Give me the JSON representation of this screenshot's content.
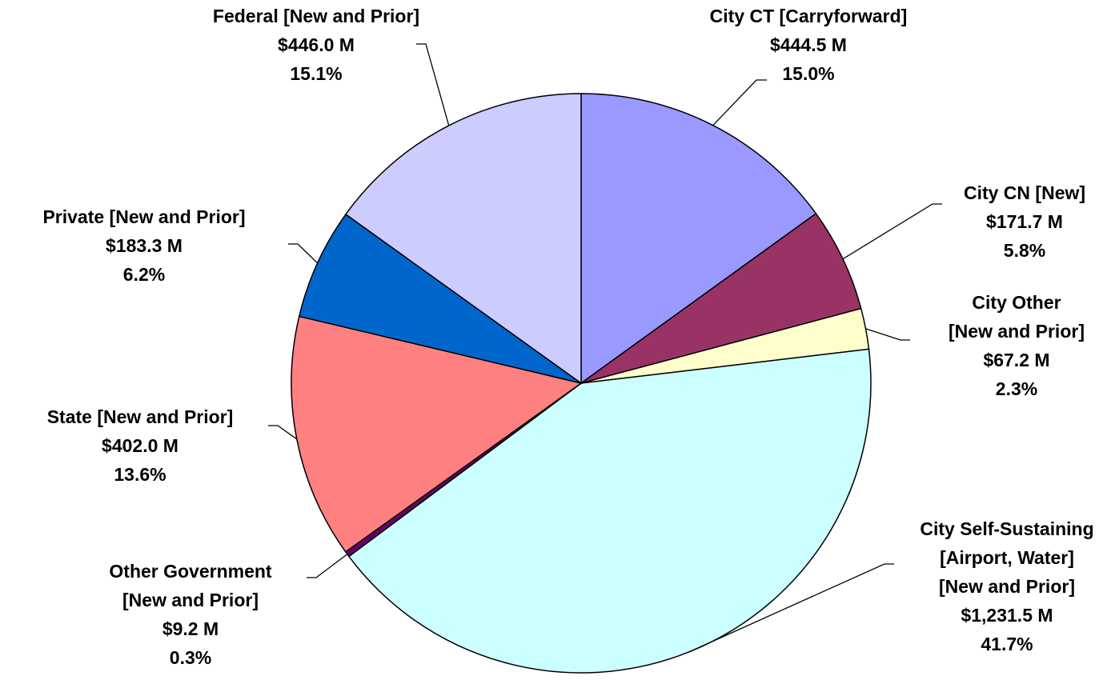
{
  "chart_data": {
    "type": "pie",
    "categories": [
      [
        "City CT [Carryforward]"
      ],
      [
        "City CN [New]"
      ],
      [
        "City Other",
        "[New and Prior]"
      ],
      [
        "City Self-Sustaining",
        "[Airport, Water]",
        "[New and Prior]"
      ],
      [
        "Other Government",
        "[New and Prior]"
      ],
      [
        "State [New and Prior]"
      ],
      [
        "Private [New and Prior]"
      ],
      [
        "Federal [New and Prior]"
      ]
    ],
    "values": [
      444.5,
      171.7,
      67.2,
      1231.5,
      9.2,
      402.0,
      183.3,
      446.0
    ],
    "value_labels": [
      "$444.5 M",
      "$171.7 M",
      "$67.2 M",
      "$1,231.5 M",
      "$9.2 M",
      "$402.0 M",
      "$183.3 M",
      "$446.0 M"
    ],
    "percent_labels": [
      "15.0%",
      "5.8%",
      "2.3%",
      "41.7%",
      "0.3%",
      "13.6%",
      "6.2%",
      "15.1%"
    ],
    "colors": [
      "#9999ff",
      "#993366",
      "#ffffcc",
      "#ccffff",
      "#660066",
      "#ff8080",
      "#0066cc",
      "#ccccff"
    ]
  }
}
